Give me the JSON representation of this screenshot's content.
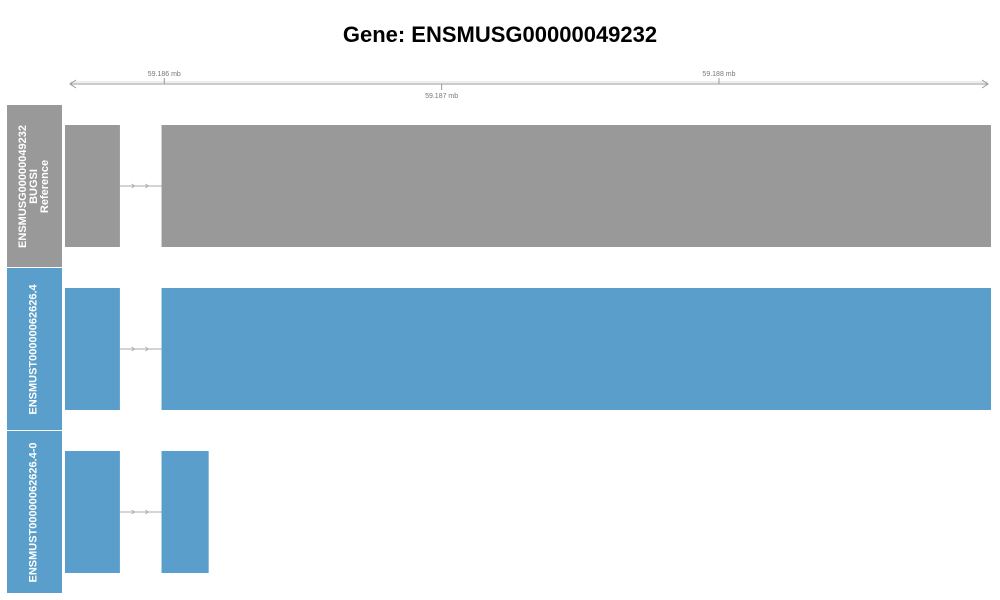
{
  "title": "Gene: ENSMUSG00000049232",
  "axis": {
    "range_mb": [
      59.18566,
      59.18897
    ],
    "ticks": [
      {
        "value": 59.186,
        "label": "59.186 mb",
        "side": "above"
      },
      {
        "value": 59.187,
        "label": "59.187 mb",
        "side": "below"
      },
      {
        "value": 59.188,
        "label": "59.188 mb",
        "side": "above"
      }
    ]
  },
  "tracks": [
    {
      "name_lines": [
        "ENSMUSG00000049232",
        "BUGSI",
        "Reference"
      ],
      "label_color": "#999999",
      "feature_color": "#999999",
      "exons_mb": [
        [
          59.18553,
          59.18584
        ],
        [
          59.18599,
          59.189
        ]
      ]
    },
    {
      "name_lines": [
        "ENSMUST00000062626.4"
      ],
      "label_color": "#5a9fcc",
      "feature_color": "#5a9fcc",
      "exons_mb": [
        [
          59.18553,
          59.18584
        ],
        [
          59.18599,
          59.189
        ]
      ]
    },
    {
      "name_lines": [
        "ENSMUST00000062626.4-0"
      ],
      "label_color": "#5a9fcc",
      "feature_color": "#5a9fcc",
      "exons_mb": [
        [
          59.18559,
          59.18584
        ],
        [
          59.18599,
          59.18616
        ]
      ]
    }
  ],
  "colors": {
    "intron_line": "#aaaaaa",
    "axis_line": "#999999"
  }
}
